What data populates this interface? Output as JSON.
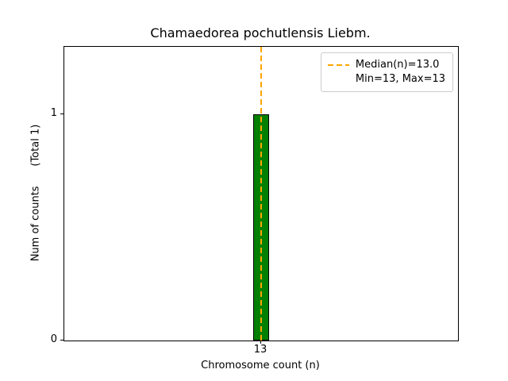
{
  "chart_data": {
    "type": "bar",
    "title": "Chamaedorea pochutlensis Liebm.",
    "xlabel": "Chromosome count (n)",
    "ylabel": "Num of counts      (Total 1)",
    "categories": [
      "13"
    ],
    "values": [
      1
    ],
    "ylim": [
      0,
      1.3
    ],
    "yticks": [
      "0",
      "1"
    ],
    "ytick_values": [
      0,
      1
    ],
    "bar_color": "#008000",
    "bar_edge_color": "#000000",
    "grid": false,
    "legend_position": "upper right",
    "median_line": {
      "value": 13.0,
      "color": "#FFA500",
      "style": "dashed"
    },
    "legend": [
      {
        "label": "Median(n)=13.0",
        "sample": "dashed-line",
        "color": "#FFA500"
      },
      {
        "label": "Min=13, Max=13",
        "sample": "none"
      }
    ]
  }
}
